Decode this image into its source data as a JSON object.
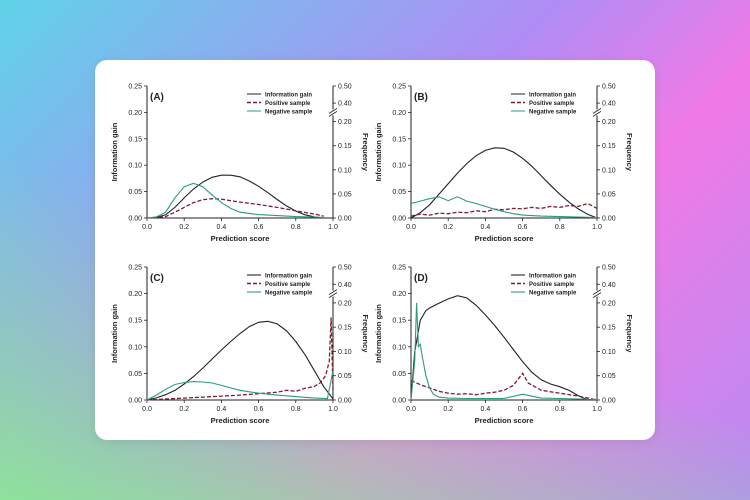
{
  "chart_data": [
    {
      "type": "line",
      "panel_label": "(A)",
      "xlabel": "Prediction score",
      "ylabel_left": "Information gain",
      "ylabel_right": "Frequency",
      "xlim": [
        0,
        1
      ],
      "ylim_left": [
        0,
        0.25
      ],
      "ylim_right": [
        0,
        0.5
      ],
      "right_axis_break": true,
      "x_ticks": [
        "0.0",
        "0.2",
        "0.4",
        "0.6",
        "0.8",
        "1.0"
      ],
      "y_left_ticks": [
        "0.00",
        "0.05",
        "0.10",
        "0.15",
        "0.20",
        "0.25"
      ],
      "y_right_ticks": [
        "0.00",
        "0.05",
        "0.10",
        "0.15",
        "0.20",
        "0.40",
        "0.50"
      ],
      "legend": [
        "Information gain",
        "Positive sample",
        "Negative sample"
      ],
      "series": [
        {
          "name": "Information gain",
          "axis": "left",
          "style": "solid",
          "color": "#222222",
          "x": [
            0.0,
            0.05,
            0.1,
            0.15,
            0.2,
            0.25,
            0.3,
            0.35,
            0.4,
            0.45,
            0.5,
            0.55,
            0.6,
            0.65,
            0.7,
            0.75,
            0.8,
            0.85,
            0.9,
            0.95
          ],
          "y": [
            0.0,
            0.001,
            0.006,
            0.02,
            0.038,
            0.055,
            0.068,
            0.077,
            0.081,
            0.081,
            0.078,
            0.07,
            0.06,
            0.048,
            0.035,
            0.023,
            0.013,
            0.006,
            0.002,
            0.0
          ]
        },
        {
          "name": "Positive sample",
          "axis": "right",
          "style": "dashed",
          "color": "#7a1f2b",
          "x": [
            0.0,
            0.1,
            0.15,
            0.2,
            0.25,
            0.3,
            0.35,
            0.4,
            0.45,
            0.5,
            0.6,
            0.7,
            0.8,
            0.9,
            0.95
          ],
          "y": [
            0.0,
            0.003,
            0.012,
            0.022,
            0.032,
            0.038,
            0.04,
            0.039,
            0.036,
            0.033,
            0.028,
            0.022,
            0.015,
            0.008,
            0.004
          ]
        },
        {
          "name": "Negative sample",
          "axis": "right",
          "style": "solid",
          "color": "#2a9d78",
          "x": [
            0.0,
            0.05,
            0.1,
            0.15,
            0.2,
            0.25,
            0.3,
            0.35,
            0.4,
            0.45,
            0.5,
            0.6,
            0.7,
            0.8,
            0.9,
            0.95
          ],
          "y": [
            0.0,
            0.002,
            0.012,
            0.042,
            0.065,
            0.072,
            0.065,
            0.048,
            0.032,
            0.02,
            0.012,
            0.007,
            0.005,
            0.003,
            0.002,
            0.001
          ]
        }
      ]
    },
    {
      "type": "line",
      "panel_label": "(B)",
      "xlabel": "Prediction score",
      "ylabel_left": "Information gain",
      "ylabel_right": "Frequency",
      "xlim": [
        0,
        1
      ],
      "ylim_left": [
        0,
        0.25
      ],
      "ylim_right": [
        0,
        0.5
      ],
      "right_axis_break": true,
      "x_ticks": [
        "0.0",
        "0.2",
        "0.4",
        "0.6",
        "0.8",
        "1.0"
      ],
      "y_left_ticks": [
        "0.00",
        "0.05",
        "0.10",
        "0.15",
        "0.20",
        "0.25"
      ],
      "y_right_ticks": [
        "0.00",
        "0.05",
        "0.10",
        "0.15",
        "0.20",
        "0.40",
        "0.50"
      ],
      "legend": [
        "Information gain",
        "Positive sample",
        "Negative sample"
      ],
      "series": [
        {
          "name": "Information gain",
          "axis": "left",
          "style": "solid",
          "color": "#222222",
          "x": [
            0.0,
            0.05,
            0.1,
            0.15,
            0.2,
            0.25,
            0.3,
            0.35,
            0.4,
            0.45,
            0.5,
            0.55,
            0.6,
            0.65,
            0.7,
            0.75,
            0.8,
            0.85,
            0.9,
            0.95,
            1.0
          ],
          "y": [
            0.0,
            0.01,
            0.025,
            0.045,
            0.065,
            0.085,
            0.103,
            0.118,
            0.128,
            0.133,
            0.132,
            0.125,
            0.113,
            0.098,
            0.08,
            0.062,
            0.045,
            0.03,
            0.017,
            0.007,
            0.0
          ]
        },
        {
          "name": "Positive sample",
          "axis": "right",
          "style": "dashed",
          "color": "#7a1f2b",
          "x": [
            0.0,
            0.05,
            0.1,
            0.15,
            0.2,
            0.25,
            0.3,
            0.35,
            0.4,
            0.45,
            0.5,
            0.55,
            0.6,
            0.65,
            0.7,
            0.75,
            0.8,
            0.85,
            0.9,
            0.95,
            1.0
          ],
          "y": [
            0.004,
            0.008,
            0.006,
            0.01,
            0.009,
            0.012,
            0.011,
            0.015,
            0.013,
            0.018,
            0.017,
            0.02,
            0.019,
            0.022,
            0.02,
            0.024,
            0.022,
            0.026,
            0.024,
            0.03,
            0.02
          ]
        },
        {
          "name": "Negative sample",
          "axis": "right",
          "style": "solid",
          "color": "#2a9d78",
          "x": [
            0.0,
            0.05,
            0.1,
            0.15,
            0.2,
            0.25,
            0.3,
            0.35,
            0.4,
            0.45,
            0.5,
            0.55,
            0.6,
            0.7,
            0.8,
            0.9,
            1.0
          ],
          "y": [
            0.03,
            0.035,
            0.04,
            0.044,
            0.036,
            0.044,
            0.035,
            0.03,
            0.024,
            0.018,
            0.013,
            0.009,
            0.006,
            0.004,
            0.003,
            0.002,
            0.001
          ]
        }
      ]
    },
    {
      "type": "line",
      "panel_label": "(C)",
      "xlabel": "Prediction score",
      "ylabel_left": "Information gain",
      "ylabel_right": "Frequency",
      "xlim": [
        0,
        1
      ],
      "ylim_left": [
        0,
        0.25
      ],
      "ylim_right": [
        0,
        0.5
      ],
      "right_axis_break": true,
      "x_ticks": [
        "0.0",
        "0.2",
        "0.4",
        "0.6",
        "0.8",
        "1.0"
      ],
      "y_left_ticks": [
        "0.00",
        "0.05",
        "0.10",
        "0.15",
        "0.20",
        "0.25"
      ],
      "y_right_ticks": [
        "0.00",
        "0.05",
        "0.10",
        "0.15",
        "0.20",
        "0.40",
        "0.50"
      ],
      "legend": [
        "Information gain",
        "Positive sample",
        "Negative sample"
      ],
      "series": [
        {
          "name": "Information gain",
          "axis": "left",
          "style": "solid",
          "color": "#222222",
          "x": [
            0.0,
            0.05,
            0.1,
            0.15,
            0.2,
            0.25,
            0.3,
            0.35,
            0.4,
            0.45,
            0.5,
            0.55,
            0.6,
            0.65,
            0.7,
            0.75,
            0.8,
            0.85,
            0.9,
            0.95,
            1.0
          ],
          "y": [
            0.0,
            0.004,
            0.01,
            0.018,
            0.03,
            0.044,
            0.06,
            0.077,
            0.094,
            0.11,
            0.125,
            0.138,
            0.146,
            0.148,
            0.143,
            0.13,
            0.11,
            0.085,
            0.055,
            0.025,
            0.002
          ]
        },
        {
          "name": "Positive sample",
          "axis": "right",
          "style": "dashed",
          "color": "#7a1f2b",
          "x": [
            0.0,
            0.1,
            0.2,
            0.3,
            0.4,
            0.5,
            0.6,
            0.7,
            0.75,
            0.8,
            0.85,
            0.9,
            0.93,
            0.96,
            0.98,
            0.99,
            1.0
          ],
          "y": [
            0.0,
            0.002,
            0.004,
            0.006,
            0.008,
            0.01,
            0.013,
            0.016,
            0.02,
            0.018,
            0.024,
            0.028,
            0.035,
            0.05,
            0.08,
            0.17,
            0.02
          ]
        },
        {
          "name": "Negative sample",
          "axis": "right",
          "style": "solid",
          "color": "#2a9d78",
          "x": [
            0.0,
            0.05,
            0.1,
            0.15,
            0.2,
            0.25,
            0.3,
            0.35,
            0.4,
            0.45,
            0.5,
            0.6,
            0.7,
            0.8,
            0.9,
            0.97,
            1.0
          ],
          "y": [
            0.0,
            0.01,
            0.022,
            0.032,
            0.036,
            0.038,
            0.037,
            0.035,
            0.03,
            0.025,
            0.02,
            0.014,
            0.01,
            0.007,
            0.004,
            0.003,
            0.06
          ]
        }
      ]
    },
    {
      "type": "line",
      "panel_label": "(D)",
      "xlabel": "Prediction score",
      "ylabel_left": "Information gain",
      "ylabel_right": "Frequency",
      "xlim": [
        0,
        1
      ],
      "ylim_left": [
        0,
        0.25
      ],
      "ylim_right": [
        0,
        0.5
      ],
      "right_axis_break": true,
      "x_ticks": [
        "0.0",
        "0.2",
        "0.4",
        "0.6",
        "0.8",
        "1.0"
      ],
      "y_left_ticks": [
        "0.00",
        "0.05",
        "0.10",
        "0.15",
        "0.20",
        "0.25"
      ],
      "y_right_ticks": [
        "0.00",
        "0.05",
        "0.10",
        "0.15",
        "0.20",
        "0.40",
        "0.50"
      ],
      "legend": [
        "Information gain",
        "Positive sample",
        "Negative sample"
      ],
      "series": [
        {
          "name": "Information gain",
          "axis": "left",
          "style": "solid",
          "color": "#222222",
          "x": [
            0.0,
            0.02,
            0.05,
            0.08,
            0.1,
            0.15,
            0.2,
            0.25,
            0.3,
            0.35,
            0.4,
            0.45,
            0.5,
            0.55,
            0.6,
            0.65,
            0.7,
            0.75,
            0.8,
            0.85,
            0.9,
            0.95
          ],
          "y": [
            0.0,
            0.09,
            0.15,
            0.168,
            0.173,
            0.182,
            0.19,
            0.196,
            0.192,
            0.178,
            0.16,
            0.14,
            0.118,
            0.095,
            0.072,
            0.052,
            0.038,
            0.03,
            0.025,
            0.018,
            0.008,
            0.0
          ]
        },
        {
          "name": "Positive sample",
          "axis": "right",
          "style": "dashed",
          "color": "#7a1f2b",
          "x": [
            0.0,
            0.03,
            0.06,
            0.1,
            0.15,
            0.2,
            0.25,
            0.3,
            0.35,
            0.4,
            0.45,
            0.5,
            0.55,
            0.58,
            0.6,
            0.63,
            0.7,
            0.8,
            0.9,
            1.0
          ],
          "y": [
            0.04,
            0.035,
            0.03,
            0.025,
            0.018,
            0.014,
            0.012,
            0.013,
            0.011,
            0.014,
            0.016,
            0.02,
            0.03,
            0.045,
            0.055,
            0.035,
            0.02,
            0.014,
            0.008,
            0.0
          ]
        },
        {
          "name": "Negative sample",
          "axis": "right",
          "style": "solid",
          "color": "#2a9d78",
          "x": [
            0.0,
            0.02,
            0.03,
            0.04,
            0.05,
            0.06,
            0.08,
            0.1,
            0.12,
            0.15,
            0.2,
            0.3,
            0.4,
            0.5,
            0.6,
            0.7,
            0.8,
            0.9,
            1.0
          ],
          "y": [
            0.0,
            0.08,
            0.2,
            0.11,
            0.115,
            0.09,
            0.05,
            0.025,
            0.012,
            0.006,
            0.004,
            0.003,
            0.003,
            0.003,
            0.012,
            0.004,
            0.003,
            0.002,
            0.001
          ]
        }
      ]
    }
  ]
}
